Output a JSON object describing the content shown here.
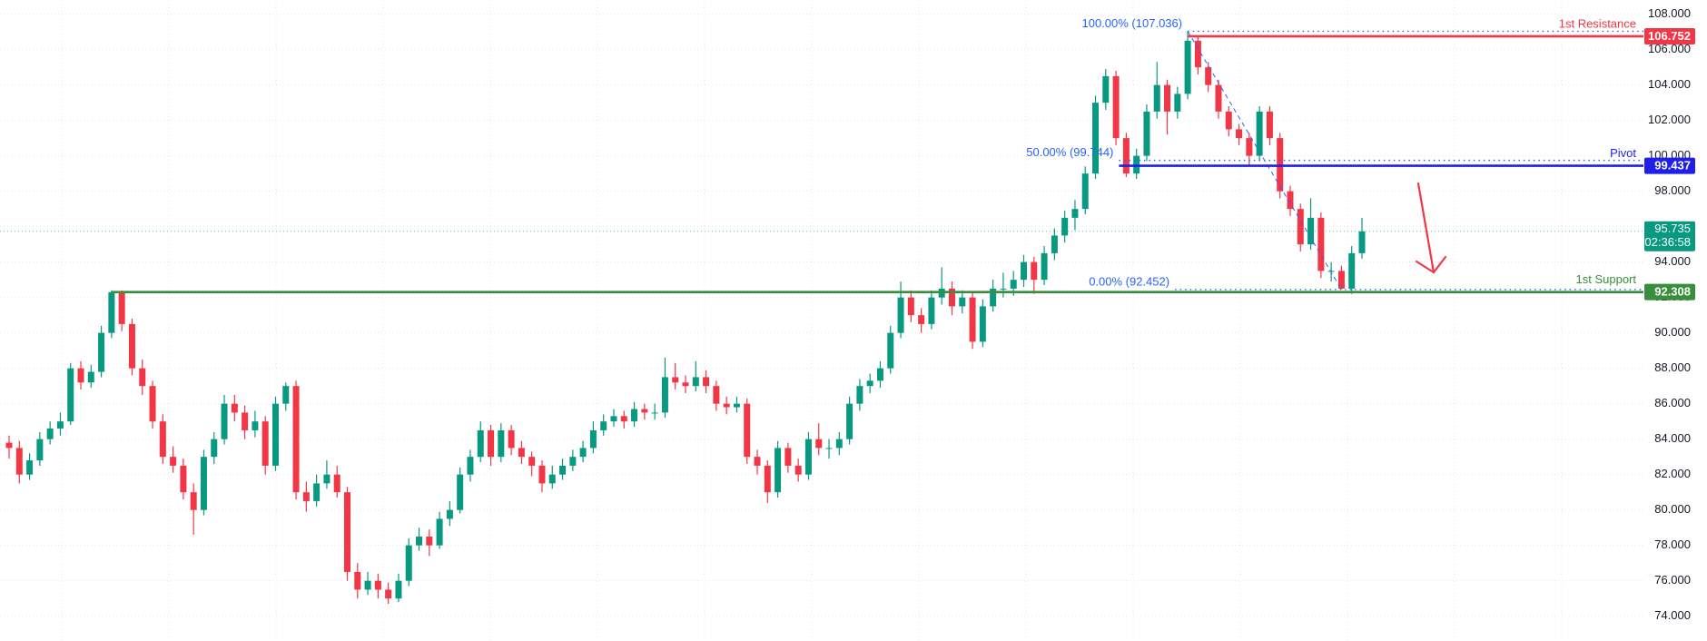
{
  "chart_data": {
    "type": "candlestick",
    "up_color": "#089981",
    "down_color": "#f23645",
    "ylim": [
      72.6,
      108.8
    ],
    "yticks": [
      {
        "value": 74,
        "label": "74.000"
      },
      {
        "value": 76,
        "label": "76.000"
      },
      {
        "value": 78,
        "label": "78.000"
      },
      {
        "value": 80,
        "label": "80.000"
      },
      {
        "value": 82,
        "label": "82.000"
      },
      {
        "value": 84,
        "label": "84.000"
      },
      {
        "value": 86,
        "label": "86.000"
      },
      {
        "value": 88,
        "label": "88.000"
      },
      {
        "value": 90,
        "label": "90.000"
      },
      {
        "value": 92,
        "label": "92.000"
      },
      {
        "value": 94,
        "label": "94.000"
      },
      {
        "value": 96,
        "label": "96.000"
      },
      {
        "value": 98,
        "label": "98.000"
      },
      {
        "value": 100,
        "label": "100.000"
      },
      {
        "value": 102,
        "label": "102.000"
      },
      {
        "value": 104,
        "label": "104.000"
      },
      {
        "value": 106,
        "label": "106.000"
      },
      {
        "value": 108,
        "label": "108.000"
      }
    ],
    "grid": true,
    "levels": [
      {
        "name": "1st Resistance",
        "value": 106.752,
        "color": "#f23645"
      },
      {
        "name": "Pivot",
        "value": 99.437,
        "color": "#1f1fe8"
      },
      {
        "name": "1st Support",
        "value": 92.308,
        "color": "#388e3c"
      }
    ],
    "fib": [
      {
        "value": 107.036,
        "label": "100.00% (107.036)"
      },
      {
        "value": 99.744,
        "label": "50.00% (99.744)"
      },
      {
        "value": 92.452,
        "label": "0.00% (92.452)"
      }
    ],
    "fib_color": "#2962ff",
    "last_price": 95.735,
    "countdown": "02:36:58",
    "candles": [
      [
        83.8,
        84.2,
        82.9,
        83.5
      ],
      [
        83.5,
        83.9,
        81.5,
        82.0
      ],
      [
        82.0,
        83.2,
        81.7,
        82.8
      ],
      [
        82.8,
        84.4,
        82.5,
        84.0
      ],
      [
        84.0,
        85.0,
        83.7,
        84.6
      ],
      [
        84.6,
        85.5,
        84.2,
        85.0
      ],
      [
        85.0,
        88.3,
        84.8,
        88.0
      ],
      [
        88.0,
        88.4,
        86.8,
        87.2
      ],
      [
        87.2,
        88.2,
        86.9,
        87.8
      ],
      [
        87.8,
        90.4,
        87.5,
        90.0
      ],
      [
        90.0,
        92.4,
        89.7,
        92.3
      ],
      [
        92.3,
        92.4,
        90.1,
        90.5
      ],
      [
        90.5,
        90.8,
        87.6,
        88.0
      ],
      [
        88.0,
        88.5,
        86.5,
        87.0
      ],
      [
        87.0,
        87.3,
        84.6,
        85.0
      ],
      [
        85.0,
        85.4,
        82.6,
        83.0
      ],
      [
        83.0,
        83.6,
        82.1,
        82.5
      ],
      [
        82.5,
        82.9,
        80.6,
        81.0
      ],
      [
        81.0,
        81.5,
        78.6,
        80.0
      ],
      [
        80.0,
        83.4,
        79.7,
        83.0
      ],
      [
        83.0,
        84.4,
        82.6,
        84.0
      ],
      [
        84.0,
        86.5,
        83.7,
        86.0
      ],
      [
        86.0,
        86.5,
        85.0,
        85.5
      ],
      [
        85.5,
        85.9,
        84.0,
        84.5
      ],
      [
        84.5,
        85.6,
        84.1,
        85.0
      ],
      [
        85.0,
        85.3,
        82.0,
        82.5
      ],
      [
        82.5,
        86.4,
        82.2,
        86.0
      ],
      [
        86.0,
        87.2,
        85.6,
        87.0
      ],
      [
        87.0,
        87.3,
        80.6,
        81.0
      ],
      [
        81.0,
        81.6,
        79.9,
        80.5
      ],
      [
        80.5,
        82.0,
        80.2,
        81.5
      ],
      [
        81.5,
        82.8,
        81.2,
        82.0
      ],
      [
        82.0,
        82.5,
        80.7,
        81.0
      ],
      [
        81.0,
        81.3,
        76.0,
        76.5
      ],
      [
        76.5,
        77.0,
        75.0,
        75.5
      ],
      [
        75.5,
        76.5,
        75.2,
        76.0
      ],
      [
        76.0,
        76.4,
        75.0,
        75.5
      ],
      [
        75.5,
        75.9,
        74.7,
        75.0
      ],
      [
        75.0,
        76.4,
        74.8,
        76.0
      ],
      [
        76.0,
        78.4,
        75.7,
        78.0
      ],
      [
        78.0,
        79.0,
        77.7,
        78.5
      ],
      [
        78.5,
        78.9,
        77.4,
        78.0
      ],
      [
        78.0,
        79.9,
        77.8,
        79.5
      ],
      [
        79.5,
        80.5,
        79.1,
        80.0
      ],
      [
        80.0,
        82.4,
        79.8,
        82.0
      ],
      [
        82.0,
        83.4,
        81.6,
        83.0
      ],
      [
        83.0,
        85.0,
        82.7,
        84.5
      ],
      [
        84.5,
        84.8,
        82.5,
        83.0
      ],
      [
        83.0,
        84.9,
        82.7,
        84.5
      ],
      [
        84.5,
        84.8,
        83.1,
        83.5
      ],
      [
        83.5,
        83.9,
        82.6,
        83.0
      ],
      [
        83.0,
        83.3,
        81.9,
        82.5
      ],
      [
        82.5,
        82.8,
        81.0,
        81.5
      ],
      [
        81.5,
        82.5,
        81.2,
        82.0
      ],
      [
        82.0,
        82.9,
        81.7,
        82.5
      ],
      [
        82.5,
        83.4,
        82.2,
        83.0
      ],
      [
        83.0,
        83.9,
        82.7,
        83.5
      ],
      [
        83.5,
        85.0,
        83.2,
        84.5
      ],
      [
        84.5,
        85.4,
        84.2,
        85.0
      ],
      [
        85.0,
        85.7,
        84.7,
        85.3
      ],
      [
        85.3,
        85.6,
        84.6,
        85.0
      ],
      [
        85.0,
        86.1,
        84.7,
        85.7
      ],
      [
        85.7,
        86.0,
        85.1,
        85.5
      ],
      [
        85.5,
        86.0,
        85.1,
        85.5
      ],
      [
        85.5,
        88.6,
        85.2,
        87.5
      ],
      [
        87.5,
        88.3,
        86.8,
        87.2
      ],
      [
        87.2,
        87.6,
        86.6,
        87.0
      ],
      [
        87.0,
        88.4,
        86.7,
        87.5
      ],
      [
        87.5,
        87.9,
        86.6,
        87.0
      ],
      [
        87.0,
        87.3,
        85.6,
        86.0
      ],
      [
        86.0,
        86.4,
        85.4,
        85.8
      ],
      [
        85.8,
        86.4,
        85.5,
        86.0
      ],
      [
        86.0,
        86.3,
        82.6,
        83.0
      ],
      [
        83.0,
        83.4,
        82.0,
        82.5
      ],
      [
        82.5,
        82.8,
        80.4,
        81.0
      ],
      [
        81.0,
        83.9,
        80.7,
        83.5
      ],
      [
        83.5,
        83.8,
        82.1,
        82.5
      ],
      [
        82.5,
        82.9,
        81.6,
        82.0
      ],
      [
        82.0,
        84.4,
        81.7,
        84.0
      ],
      [
        84.0,
        84.9,
        83.1,
        83.5
      ],
      [
        83.5,
        84.0,
        82.9,
        83.5
      ],
      [
        83.5,
        84.4,
        83.1,
        84.0
      ],
      [
        84.0,
        86.4,
        83.7,
        86.0
      ],
      [
        86.0,
        87.4,
        85.6,
        87.0
      ],
      [
        87.0,
        87.7,
        86.6,
        87.3
      ],
      [
        87.3,
        88.4,
        86.9,
        88.0
      ],
      [
        88.0,
        90.4,
        87.7,
        90.0
      ],
      [
        90.0,
        92.9,
        89.7,
        92.0
      ],
      [
        92.0,
        92.4,
        90.6,
        91.0
      ],
      [
        91.0,
        91.4,
        90.0,
        90.5
      ],
      [
        90.5,
        92.4,
        90.2,
        92.0
      ],
      [
        92.0,
        93.7,
        91.6,
        92.5
      ],
      [
        92.5,
        92.9,
        91.0,
        91.5
      ],
      [
        91.5,
        92.4,
        91.1,
        92.0
      ],
      [
        92.0,
        92.3,
        89.1,
        89.5
      ],
      [
        89.5,
        91.9,
        89.2,
        91.5
      ],
      [
        91.5,
        93.0,
        91.2,
        92.5
      ],
      [
        92.5,
        93.4,
        92.0,
        92.5
      ],
      [
        92.5,
        93.5,
        92.1,
        93.0
      ],
      [
        93.0,
        94.4,
        92.6,
        94.0
      ],
      [
        94.0,
        94.3,
        92.2,
        93.0
      ],
      [
        93.0,
        94.9,
        92.7,
        94.5
      ],
      [
        94.5,
        95.9,
        94.1,
        95.5
      ],
      [
        95.5,
        96.9,
        95.1,
        96.5
      ],
      [
        96.5,
        97.5,
        95.8,
        97.0
      ],
      [
        97.0,
        99.4,
        96.7,
        99.0
      ],
      [
        99.0,
        103.4,
        98.7,
        103.0
      ],
      [
        103.0,
        104.9,
        102.6,
        104.5
      ],
      [
        104.5,
        104.8,
        100.6,
        101.0
      ],
      [
        101.0,
        101.3,
        98.8,
        99.0
      ],
      [
        99.0,
        100.4,
        98.7,
        100.0
      ],
      [
        100.0,
        102.9,
        99.7,
        102.5
      ],
      [
        102.5,
        105.3,
        102.1,
        104.0
      ],
      [
        104.0,
        104.3,
        101.2,
        102.5
      ],
      [
        102.5,
        103.9,
        102.1,
        103.5
      ],
      [
        103.5,
        107.036,
        103.2,
        106.5
      ],
      [
        106.5,
        106.8,
        104.6,
        105.0
      ],
      [
        105.0,
        105.3,
        103.6,
        104.0
      ],
      [
        104.0,
        104.3,
        102.1,
        102.5
      ],
      [
        102.5,
        102.8,
        101.1,
        101.5
      ],
      [
        101.5,
        101.8,
        100.6,
        101.0
      ],
      [
        101.0,
        101.3,
        99.4,
        100.0
      ],
      [
        100.0,
        102.8,
        99.7,
        102.5
      ],
      [
        102.5,
        102.8,
        100.6,
        101.0
      ],
      [
        101.0,
        101.3,
        97.6,
        98.0
      ],
      [
        98.0,
        98.3,
        96.6,
        97.0
      ],
      [
        97.0,
        97.3,
        94.6,
        95.0
      ],
      [
        95.0,
        97.6,
        94.7,
        96.5
      ],
      [
        96.5,
        96.8,
        93.1,
        93.5
      ],
      [
        93.5,
        94.0,
        92.9,
        93.5
      ],
      [
        93.5,
        93.8,
        92.452,
        92.5
      ],
      [
        92.5,
        94.9,
        92.2,
        94.5
      ],
      [
        94.5,
        96.5,
        94.2,
        95.735
      ]
    ]
  }
}
